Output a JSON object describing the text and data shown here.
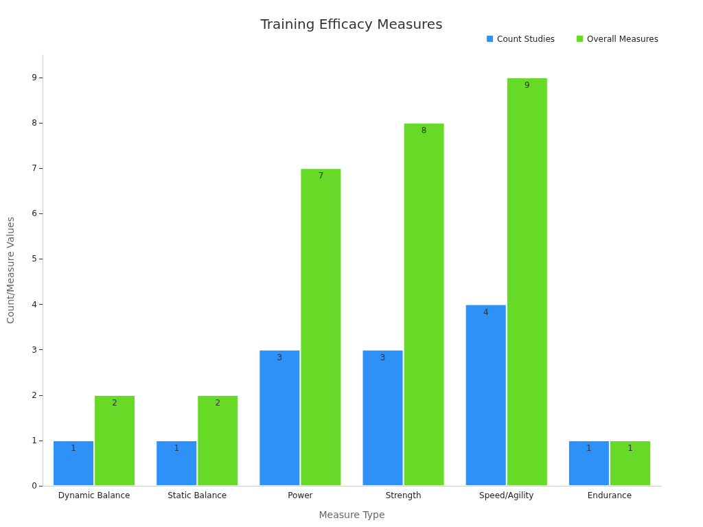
{
  "chart_data": {
    "type": "bar",
    "title": "Training Efficacy Measures",
    "xlabel": "Measure Type",
    "ylabel": "Count/Measure Values",
    "categories": [
      "Dynamic Balance",
      "Static Balance",
      "Power",
      "Strength",
      "Speed/Agility",
      "Endurance"
    ],
    "series": [
      {
        "name": "Count Studies",
        "color": "#2e91f8",
        "values": [
          1,
          1,
          3,
          3,
          4,
          1
        ]
      },
      {
        "name": "Overall Measures",
        "color": "#66da26",
        "values": [
          2,
          2,
          7,
          8,
          9,
          1
        ]
      }
    ],
    "ylim": [
      0,
      9.5
    ],
    "yticks": [
      0,
      1,
      2,
      3,
      4,
      5,
      6,
      7,
      8,
      9
    ],
    "grid": false,
    "legend": "top right",
    "data_labels": true
  }
}
